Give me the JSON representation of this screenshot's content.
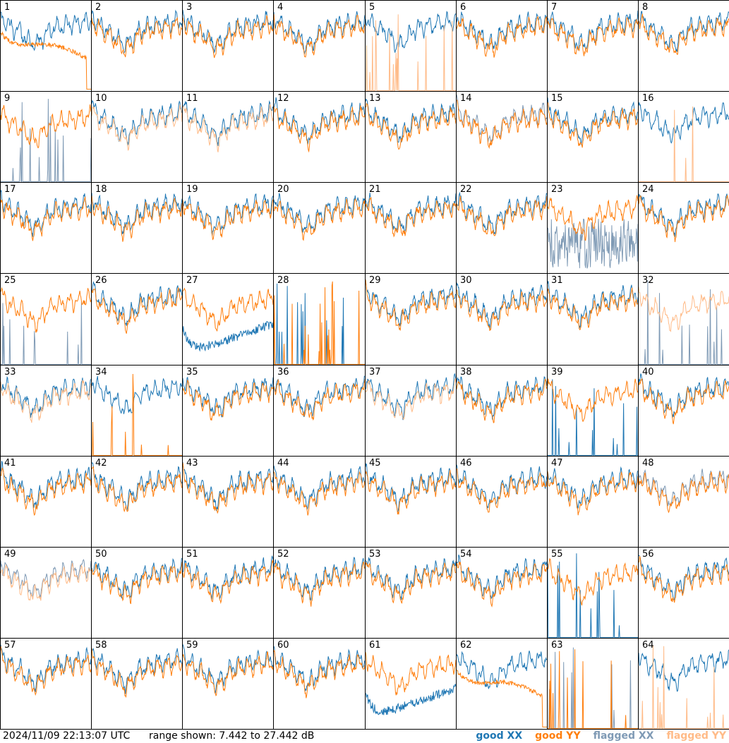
{
  "footer": {
    "timestamp": "2024/11/09 22:13:07 UTC",
    "range": "range shown: 7.442 to 27.442 dB"
  },
  "legend": [
    {
      "label": "good XX",
      "color": "#1f77b4"
    },
    {
      "label": "good YY",
      "color": "#ff7f0e"
    },
    {
      "label": "flagged XX",
      "color": "#7f9ab5"
    },
    {
      "label": "flagged YY",
      "color": "#ffbb88"
    }
  ],
  "chart_data": {
    "type": "line",
    "ylim": [
      7.442,
      27.442
    ],
    "yunit": "dB",
    "grid": "8x8 small multiples",
    "panels": [
      {
        "label": "1",
        "xx": "good",
        "yy": "good",
        "style": "orange_drop"
      },
      {
        "label": "2",
        "xx": "good",
        "yy": "good"
      },
      {
        "label": "3",
        "xx": "good",
        "yy": "good"
      },
      {
        "label": "4",
        "xx": "good",
        "yy": "good"
      },
      {
        "label": "5",
        "xx": "good",
        "yy": "flagged",
        "style": "yy_spiky"
      },
      {
        "label": "6",
        "xx": "good",
        "yy": "good"
      },
      {
        "label": "7",
        "xx": "good",
        "yy": "good"
      },
      {
        "label": "8",
        "xx": "good",
        "yy": "good"
      },
      {
        "label": "9",
        "xx": "flagged",
        "yy": "good",
        "style": "xx_spiky"
      },
      {
        "label": "10",
        "xx": "good",
        "yy": "flagged"
      },
      {
        "label": "11",
        "xx": "good",
        "yy": "flagged"
      },
      {
        "label": "12",
        "xx": "good",
        "yy": "good"
      },
      {
        "label": "13",
        "xx": "good",
        "yy": "good"
      },
      {
        "label": "14",
        "xx": "flagged",
        "yy": "good"
      },
      {
        "label": "15",
        "xx": "good",
        "yy": "good"
      },
      {
        "label": "16",
        "xx": "good",
        "yy": "flagged",
        "style": "yy_spiky"
      },
      {
        "label": "17",
        "xx": "good",
        "yy": "good"
      },
      {
        "label": "18",
        "xx": "good",
        "yy": "good"
      },
      {
        "label": "19",
        "xx": "good",
        "yy": "good"
      },
      {
        "label": "20",
        "xx": "good",
        "yy": "good"
      },
      {
        "label": "21",
        "xx": "good",
        "yy": "good"
      },
      {
        "label": "22",
        "xx": "good",
        "yy": "good"
      },
      {
        "label": "23",
        "xx": "flagged",
        "yy": "good",
        "style": "xx_noisy_low"
      },
      {
        "label": "24",
        "xx": "good",
        "yy": "good"
      },
      {
        "label": "25",
        "xx": "flagged",
        "yy": "good",
        "style": "xx_spiky"
      },
      {
        "label": "26",
        "xx": "good",
        "yy": "good"
      },
      {
        "label": "27",
        "xx": "good",
        "yy": "good",
        "style": "xx_low"
      },
      {
        "label": "28",
        "xx": "good",
        "yy": "good",
        "style": "both_spiky"
      },
      {
        "label": "29",
        "xx": "good",
        "yy": "good"
      },
      {
        "label": "30",
        "xx": "good",
        "yy": "good"
      },
      {
        "label": "31",
        "xx": "good",
        "yy": "good"
      },
      {
        "label": "32",
        "xx": "flagged",
        "yy": "flagged",
        "style": "xx_spiky"
      },
      {
        "label": "33",
        "xx": "good",
        "yy": "flagged"
      },
      {
        "label": "34",
        "xx": "good",
        "yy": "good",
        "style": "yy_spiky"
      },
      {
        "label": "35",
        "xx": "good",
        "yy": "good"
      },
      {
        "label": "36",
        "xx": "good",
        "yy": "good"
      },
      {
        "label": "37",
        "xx": "good",
        "yy": "flagged"
      },
      {
        "label": "38",
        "xx": "good",
        "yy": "good"
      },
      {
        "label": "39",
        "xx": "good",
        "yy": "good",
        "style": "xx_spiky"
      },
      {
        "label": "40",
        "xx": "good",
        "yy": "good"
      },
      {
        "label": "41",
        "xx": "good",
        "yy": "good"
      },
      {
        "label": "42",
        "xx": "good",
        "yy": "good"
      },
      {
        "label": "43",
        "xx": "good",
        "yy": "good"
      },
      {
        "label": "44",
        "xx": "good",
        "yy": "good"
      },
      {
        "label": "45",
        "xx": "good",
        "yy": "good"
      },
      {
        "label": "46",
        "xx": "good",
        "yy": "good"
      },
      {
        "label": "47",
        "xx": "good",
        "yy": "good"
      },
      {
        "label": "48",
        "xx": "flagged",
        "yy": "good"
      },
      {
        "label": "49",
        "xx": "flagged",
        "yy": "flagged"
      },
      {
        "label": "50",
        "xx": "good",
        "yy": "good"
      },
      {
        "label": "51",
        "xx": "good",
        "yy": "good"
      },
      {
        "label": "52",
        "xx": "good",
        "yy": "good"
      },
      {
        "label": "53",
        "xx": "good",
        "yy": "good"
      },
      {
        "label": "54",
        "xx": "good",
        "yy": "good"
      },
      {
        "label": "55",
        "xx": "good",
        "yy": "good",
        "style": "xx_spiky"
      },
      {
        "label": "56",
        "xx": "good",
        "yy": "good"
      },
      {
        "label": "57",
        "xx": "good",
        "yy": "good"
      },
      {
        "label": "58",
        "xx": "good",
        "yy": "good"
      },
      {
        "label": "59",
        "xx": "good",
        "yy": "good"
      },
      {
        "label": "60",
        "xx": "good",
        "yy": "good"
      },
      {
        "label": "61",
        "xx": "good",
        "yy": "good",
        "style": "xx_low"
      },
      {
        "label": "62",
        "xx": "good",
        "yy": "good",
        "style": "orange_drop"
      },
      {
        "label": "63",
        "xx": "flagged",
        "yy": "good",
        "style": "both_spiky"
      },
      {
        "label": "64",
        "xx": "good",
        "yy": "flagged",
        "style": "yy_spiky"
      }
    ]
  }
}
